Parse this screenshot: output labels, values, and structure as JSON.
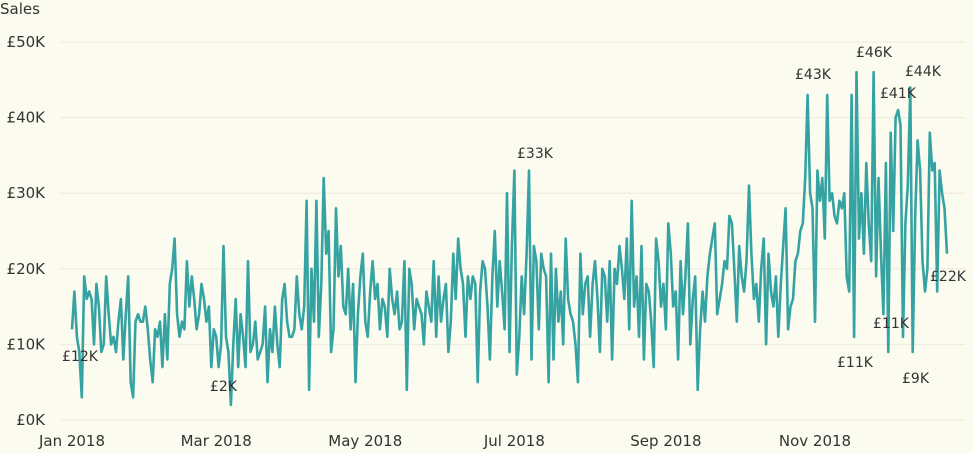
{
  "chart_data": {
    "type": "line",
    "title": "",
    "ylabel": "Sales",
    "xlabel": "",
    "ylim": [
      0,
      50
    ],
    "y_unit": "£K",
    "y_ticks": [
      "£0K",
      "£10K",
      "£20K",
      "£30K",
      "£40K",
      "£50K"
    ],
    "y_tick_values": [
      0,
      10,
      20,
      30,
      40,
      50
    ],
    "x_ticks": [
      {
        "label": "Jan 2018",
        "date": "2018-01-01"
      },
      {
        "label": "Mar 2018",
        "date": "2018-03-01"
      },
      {
        "label": "May 2018",
        "date": "2018-05-01"
      },
      {
        "label": "Jul 2018",
        "date": "2018-07-01"
      },
      {
        "label": "Sep 2018",
        "date": "2018-09-01"
      },
      {
        "label": "Nov 2018",
        "date": "2018-11-01"
      }
    ],
    "grid": true,
    "line_color": "#36a3a3",
    "series": [
      {
        "daily_values_by_month_k": [
          {
            "month": "2018-01",
            "values": [
              12,
              17,
              11,
              9,
              3,
              19,
              16,
              17,
              16,
              10,
              18,
              15,
              9,
              10,
              19,
              14,
              10,
              11,
              9,
              13,
              16,
              8,
              14,
              19,
              5,
              3,
              13,
              14,
              13,
              13,
              15
            ]
          },
          {
            "month": "2018-02",
            "values": [
              12,
              8,
              5,
              12,
              11,
              13,
              7,
              14,
              8,
              18,
              20,
              24,
              14,
              11,
              13,
              12,
              21,
              15,
              19,
              16,
              12,
              14,
              18,
              16,
              13,
              15,
              7,
              12
            ]
          },
          {
            "month": "2018-03",
            "values": [
              11,
              7,
              10,
              23,
              11,
              9,
              2,
              10,
              16,
              7,
              14,
              11,
              7,
              21,
              9,
              10,
              13,
              8,
              9,
              10,
              15,
              5,
              12,
              9,
              15,
              10,
              7,
              16,
              18,
              13,
              11
            ]
          },
          {
            "month": "2018-04",
            "values": [
              11,
              12,
              19,
              14,
              12,
              15,
              29,
              4,
              20,
              13,
              29,
              11,
              18,
              32,
              22,
              25,
              9,
              12,
              28,
              19,
              23,
              15,
              14,
              20,
              12,
              18,
              5,
              14,
              19,
              22
            ]
          },
          {
            "month": "2018-05",
            "values": [
              13,
              11,
              17,
              21,
              16,
              18,
              12,
              16,
              15,
              11,
              20,
              16,
              14,
              17,
              12,
              13,
              21,
              4,
              20,
              18,
              12,
              16,
              15,
              14,
              10,
              17,
              15,
              13,
              21,
              11,
              19
            ]
          },
          {
            "month": "2018-06",
            "values": [
              13,
              16,
              18,
              9,
              13,
              22,
              16,
              24,
              20,
              18,
              11,
              19,
              16,
              19,
              18,
              5,
              17,
              21,
              20,
              15,
              8,
              19,
              25,
              15,
              21,
              17,
              12,
              30,
              9,
              23
            ]
          },
          {
            "month": "2018-07",
            "values": [
              33,
              6,
              11,
              19,
              14,
              22,
              33,
              8,
              23,
              21,
              12,
              22,
              20,
              19,
              5,
              22,
              8,
              20,
              13,
              17,
              10,
              24,
              16,
              14,
              13,
              10,
              5,
              22,
              14,
              18,
              19
            ]
          },
          {
            "month": "2018-08",
            "values": [
              11,
              18,
              21,
              16,
              9,
              20,
              19,
              13,
              21,
              8,
              20,
              18,
              23,
              20,
              16,
              24,
              12,
              29,
              15,
              19,
              11,
              23,
              8,
              18,
              17,
              13,
              7,
              24,
              21,
              15,
              18
            ]
          },
          {
            "month": "2018-09",
            "values": [
              12,
              26,
              22,
              15,
              17,
              8,
              21,
              14,
              19,
              26,
              10,
              16,
              19,
              4,
              12,
              17,
              13,
              19,
              22,
              24,
              26,
              14,
              16,
              18,
              21,
              20,
              27,
              26,
              20,
              13
            ]
          },
          {
            "month": "2018-10",
            "values": [
              23,
              19,
              17,
              21,
              31,
              22,
              16,
              18,
              13,
              20,
              24,
              10,
              22,
              17,
              15,
              19,
              11,
              18,
              23,
              28,
              12,
              15,
              16,
              21,
              22,
              25,
              26,
              32,
              43,
              30,
              28
            ]
          },
          {
            "month": "2018-11",
            "values": [
              13,
              33,
              29,
              32,
              24,
              43,
              29,
              30,
              27,
              26,
              29,
              28,
              30,
              19,
              17,
              43,
              11,
              46,
              24,
              30,
              22,
              34,
              26,
              21,
              46,
              19,
              32,
              22,
              14,
              34
            ]
          },
          {
            "month": "2018-12",
            "values": [
              9,
              38,
              25,
              40,
              41,
              39,
              11,
              26,
              31,
              44,
              9,
              27,
              37,
              33,
              21,
              17,
              20,
              38,
              33,
              34,
              17,
              33,
              30,
              28,
              22
            ]
          }
        ]
      }
    ],
    "annotations": [
      {
        "label": "£12K",
        "date": "2018-01-01",
        "value": 12
      },
      {
        "label": "£2K",
        "date": "2018-03-07",
        "value": 2
      },
      {
        "label": "£33K",
        "date": "2018-07-07",
        "value": 33
      },
      {
        "label": "£43K",
        "date": "2018-10-29",
        "value": 43
      },
      {
        "label": "£46K",
        "date": "2018-11-18",
        "value": 46
      },
      {
        "label": "£41K",
        "date": "2018-12-05",
        "value": 41
      },
      {
        "label": "£44K",
        "date": "2018-12-10",
        "value": 44
      },
      {
        "label": "£11K",
        "date": "2018-11-17",
        "value": 11
      },
      {
        "label": "£11K",
        "date": "2018-12-07",
        "value": 11
      },
      {
        "label": "£9K",
        "date": "2018-12-11",
        "value": 9
      },
      {
        "label": "£22K",
        "date": "2018-12-25",
        "value": 22
      }
    ]
  }
}
